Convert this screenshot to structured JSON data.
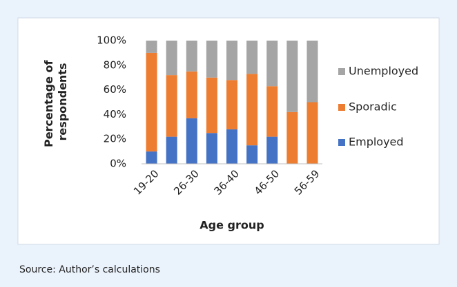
{
  "chart_data": {
    "type": "stacked_bar",
    "ylabel": [
      "Percentage of",
      "respondents"
    ],
    "xlabel": "Age group",
    "categories": [
      "19-20",
      null,
      "26-30",
      null,
      "36-40",
      null,
      "46-50",
      null,
      "56-59"
    ],
    "series": [
      {
        "name": "Employed",
        "color": "#4472c4",
        "values": [
          10,
          22,
          37,
          25,
          28,
          15,
          22,
          0,
          0
        ]
      },
      {
        "name": "Sporadic",
        "color": "#ed7d31",
        "values": [
          80,
          50,
          38,
          45,
          40,
          58,
          41,
          42,
          50
        ]
      },
      {
        "name": "Unemployed",
        "color": "#a5a5a5",
        "values": [
          10,
          28,
          25,
          30,
          32,
          27,
          37,
          58,
          50
        ]
      }
    ],
    "ylim": [
      0,
      100
    ],
    "yticks": [
      {
        "value": 0,
        "label": "0%"
      },
      {
        "value": 20,
        "label": "20%"
      },
      {
        "value": 40,
        "label": "40%"
      },
      {
        "value": 60,
        "label": "60%"
      },
      {
        "value": 80,
        "label": "80%"
      },
      {
        "value": 100,
        "label": "100%"
      }
    ],
    "legend": "right"
  },
  "source": "Source: Author’s calculations"
}
